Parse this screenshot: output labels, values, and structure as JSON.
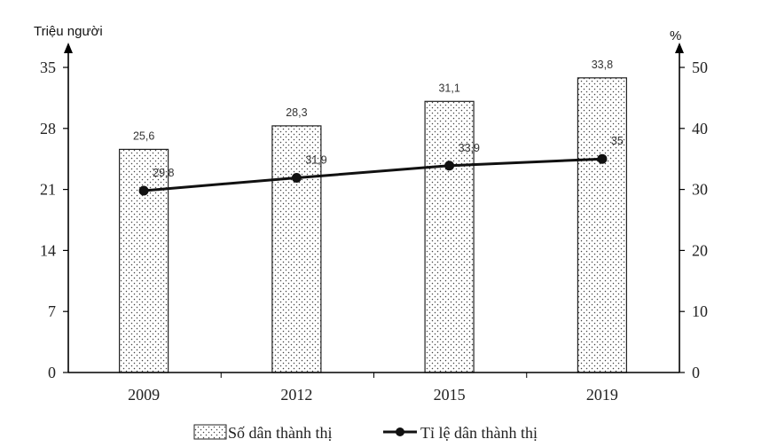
{
  "chart_data": {
    "type": "bar",
    "categories": [
      "2009",
      "2012",
      "2015",
      "2019"
    ],
    "y_left_label": "Triệu người",
    "y_right_label": "%",
    "y_left_ticks": [
      "0",
      "7",
      "14",
      "21",
      "28",
      "35"
    ],
    "y_right_ticks": [
      "0",
      "10",
      "20",
      "30",
      "40",
      "50"
    ],
    "y_left_lim": [
      0,
      35
    ],
    "y_right_lim": [
      0,
      50
    ],
    "grid": false,
    "legend_position": "bottom",
    "series": [
      {
        "name": "Số dân thành thị",
        "type": "bar",
        "axis": "left",
        "pattern": "dotted",
        "values": [
          25.6,
          28.3,
          31.1,
          33.8
        ],
        "labels": [
          "25,6",
          "28,3",
          "31,1",
          "33,8"
        ]
      },
      {
        "name": "Tỉ lệ dân thành thị",
        "type": "line",
        "axis": "right",
        "values": [
          29.8,
          31.9,
          33.9,
          35
        ],
        "labels": [
          "29,8",
          "31,9",
          "33,9",
          "35"
        ]
      }
    ]
  }
}
